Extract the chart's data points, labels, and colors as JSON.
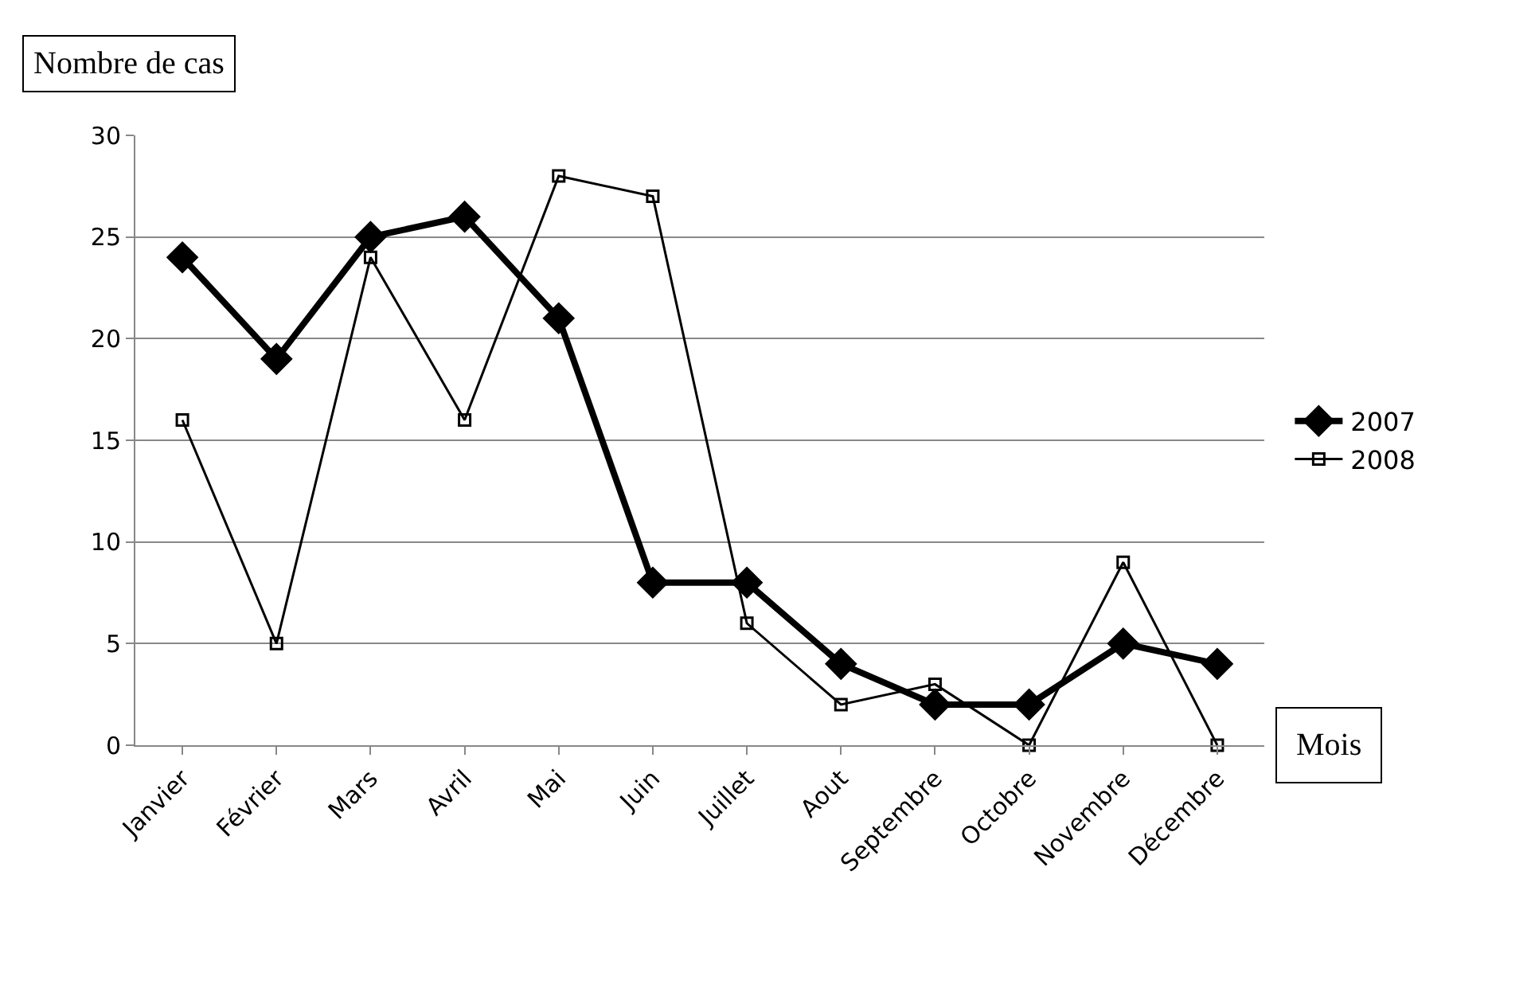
{
  "chart_data": {
    "type": "line",
    "xlabel": "Mois",
    "ylabel": "Nombre de cas",
    "categories": [
      "Janvier",
      "Février",
      "Mars",
      "Avril",
      "Mai",
      "Juin",
      "Juillet",
      "Aout",
      "Septembre",
      "Octobre",
      "Novembre",
      "Décembre"
    ],
    "series": [
      {
        "name": "2007",
        "color": "#000000",
        "marker": "diamond",
        "values": [
          24,
          19,
          25,
          26,
          21,
          8,
          8,
          4,
          2,
          2,
          5,
          4
        ]
      },
      {
        "name": "2008",
        "color": "#000000",
        "marker": "square",
        "values": [
          16,
          5,
          24,
          16,
          28,
          27,
          6,
          2,
          3,
          0,
          9,
          0
        ]
      }
    ],
    "ylim": [
      0,
      30
    ],
    "yticks": [
      0,
      5,
      10,
      15,
      20,
      25,
      30
    ],
    "grid": "y",
    "legend": "right",
    "line_style": "solid"
  }
}
